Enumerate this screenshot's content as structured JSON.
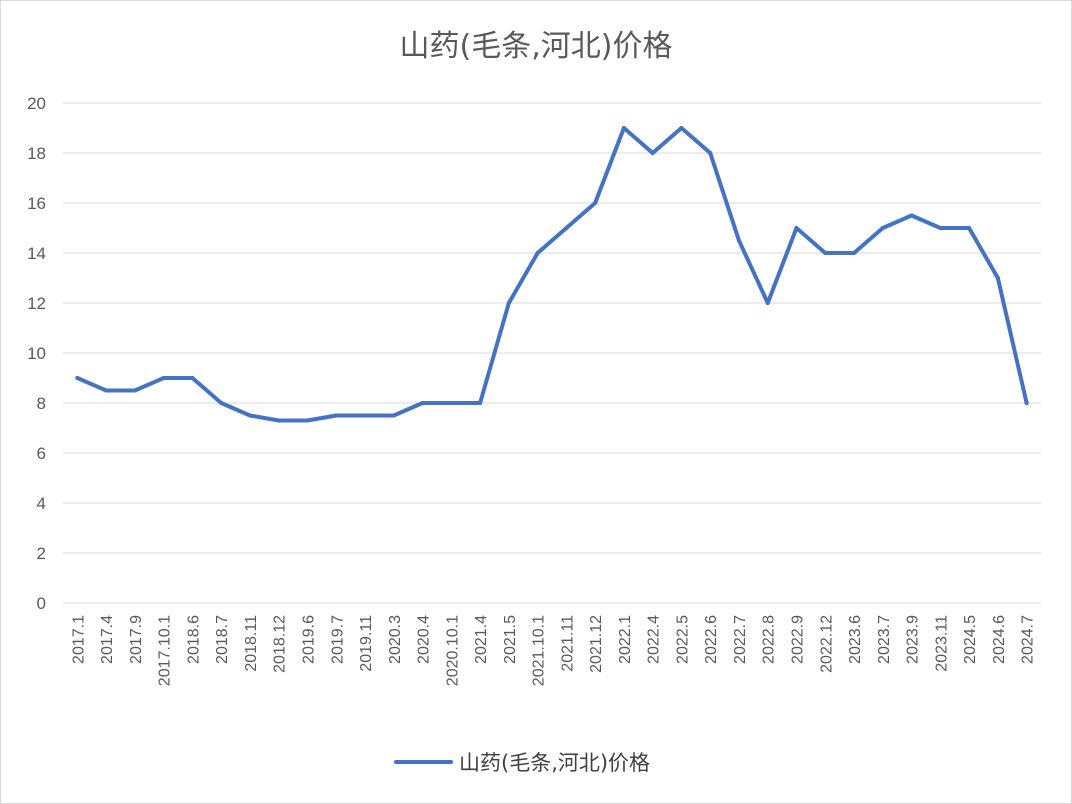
{
  "chart_data": {
    "type": "line",
    "title": "山药(毛条,河北)价格",
    "xlabel": "",
    "ylabel": "",
    "ylim": [
      0,
      20
    ],
    "yticks": [
      0,
      2,
      4,
      6,
      8,
      10,
      12,
      14,
      16,
      18,
      20
    ],
    "grid": true,
    "legend_position": "bottom",
    "categories": [
      "2017.1",
      "2017.4",
      "2017.9",
      "2017.10.1",
      "2018.6",
      "2018.7",
      "2018.11",
      "2018.12",
      "2019.6",
      "2019.7",
      "2019.11",
      "2020.3",
      "2020.4",
      "2020.10.1",
      "2021.4",
      "2021.5",
      "2021.10.1",
      "2021.11",
      "2021.12",
      "2022.1",
      "2022.4",
      "2022.5",
      "2022.6",
      "2022.7",
      "2022.8",
      "2022.9",
      "2022.12",
      "2023.6",
      "2023.7",
      "2023.9",
      "2023.11",
      "2024.5",
      "2024.6",
      "2024.7"
    ],
    "series": [
      {
        "name": "山药(毛条,河北)价格",
        "color": "#4472c4",
        "values": [
          9,
          8.5,
          8.5,
          9,
          9,
          8,
          7.5,
          7.3,
          7.3,
          7.5,
          7.5,
          7.5,
          8,
          8,
          8,
          12,
          14,
          15,
          16,
          19,
          18,
          19,
          18,
          14.5,
          12,
          15,
          14,
          14,
          15,
          15.5,
          15,
          15,
          13,
          8
        ]
      }
    ]
  }
}
